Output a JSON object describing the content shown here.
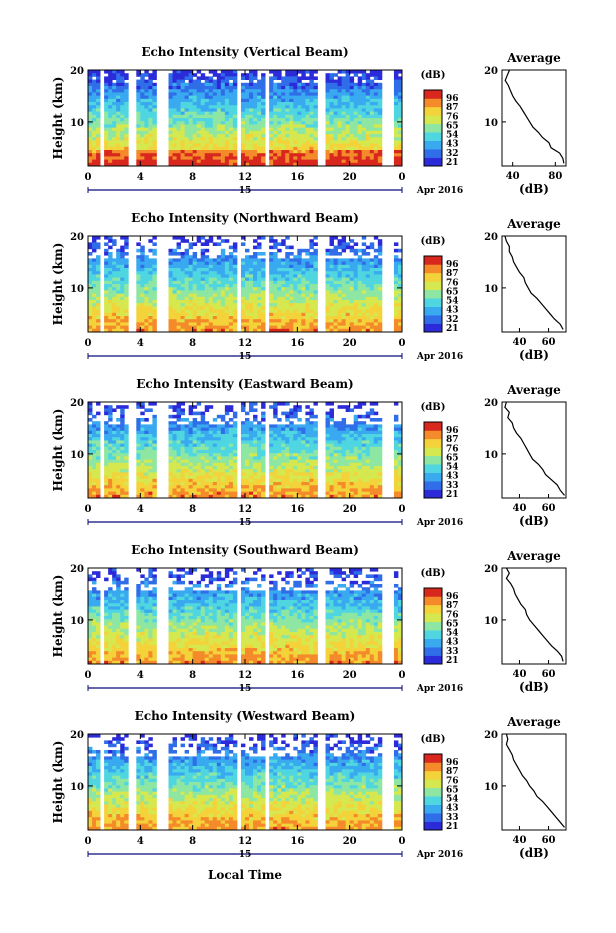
{
  "figure": {
    "x_axis_label": "Local Time",
    "date_unit": "Apr 2016",
    "date_mark": "15",
    "average_panel_title": "Average",
    "y_axis_label": "Height (km)",
    "colorbar_unit_label": "(dB)",
    "average_x_label": "(dB)"
  },
  "colormap": [
    "#2b2bd9",
    "#2f6ee8",
    "#39a9f0",
    "#4fd6e0",
    "#8ee6a3",
    "#d6e84f",
    "#f4d23a",
    "#f48a2a",
    "#d8281e"
  ],
  "chart_data": [
    {
      "type": "heatmap",
      "title": "Echo Intensity (Vertical Beam)",
      "x_ticks": [
        "0",
        "4",
        "8",
        "12",
        "16",
        "20",
        "0"
      ],
      "y_ticks": [
        "20",
        "10"
      ],
      "xlim": [
        0,
        24
      ],
      "ylim": [
        1.5,
        20
      ],
      "colorbar_ticks": [
        "96",
        "87",
        "76",
        "65",
        "54",
        "43",
        "32",
        "21"
      ],
      "gaps_hours": [
        [
          0.8,
          1.1
        ],
        [
          3.0,
          3.6
        ],
        [
          5.3,
          6.2
        ],
        [
          11.5,
          11.8
        ],
        [
          13.5,
          13.8
        ],
        [
          17.5,
          17.7
        ],
        [
          17.9,
          18.2
        ],
        [
          22.4,
          23.4
        ]
      ],
      "average": {
        "x_ticks": [
          "40",
          "80"
        ],
        "xlim": [
          30,
          90
        ],
        "y_ticks": [
          "20",
          "10"
        ],
        "height_km": [
          20,
          19,
          18,
          17,
          16,
          15,
          14,
          13,
          12,
          11,
          10,
          9,
          8,
          7,
          6,
          5,
          4,
          3,
          2
        ],
        "db": [
          37,
          35,
          33,
          36,
          38,
          40,
          43,
          47,
          50,
          53,
          56,
          59,
          64,
          68,
          74,
          76,
          84,
          87,
          88
        ]
      }
    },
    {
      "type": "heatmap",
      "title": "Echo Intensity (Northward Beam)",
      "x_ticks": [
        "0",
        "4",
        "8",
        "12",
        "16",
        "20",
        "0"
      ],
      "y_ticks": [
        "20",
        "10"
      ],
      "xlim": [
        0,
        24
      ],
      "ylim": [
        1.5,
        20
      ],
      "colorbar_ticks": [
        "96",
        "87",
        "76",
        "65",
        "54",
        "43",
        "32",
        "21"
      ],
      "gaps_hours": [
        [
          0.8,
          1.1
        ],
        [
          3.0,
          3.6
        ],
        [
          5.3,
          6.2
        ],
        [
          11.5,
          11.8
        ],
        [
          13.5,
          13.8
        ],
        [
          17.5,
          17.7
        ],
        [
          17.9,
          18.2
        ],
        [
          22.4,
          23.4
        ]
      ],
      "average": {
        "x_ticks": [
          "40",
          "60"
        ],
        "xlim": [
          28,
          72
        ],
        "y_ticks": [
          "20",
          "10"
        ],
        "height_km": [
          20,
          19,
          18,
          17,
          16,
          15,
          14,
          13,
          12,
          11,
          10,
          9,
          8,
          7,
          6,
          5,
          4,
          3,
          2
        ],
        "db": [
          30,
          31,
          33,
          33,
          35,
          36,
          38,
          40,
          43,
          44,
          46,
          48,
          52,
          55,
          58,
          61,
          64,
          68,
          70
        ]
      }
    },
    {
      "type": "heatmap",
      "title": "Echo Intensity (Eastward Beam)",
      "x_ticks": [
        "0",
        "4",
        "8",
        "12",
        "16",
        "20",
        "0"
      ],
      "y_ticks": [
        "20",
        "10"
      ],
      "xlim": [
        0,
        24
      ],
      "ylim": [
        1.5,
        20
      ],
      "colorbar_ticks": [
        "96",
        "87",
        "76",
        "65",
        "54",
        "43",
        "33",
        "21"
      ],
      "gaps_hours": [
        [
          0.8,
          1.1
        ],
        [
          3.0,
          3.6
        ],
        [
          5.3,
          6.2
        ],
        [
          11.5,
          11.8
        ],
        [
          13.5,
          13.8
        ],
        [
          17.5,
          17.7
        ],
        [
          17.9,
          18.2
        ],
        [
          22.4,
          23.4
        ]
      ],
      "average": {
        "x_ticks": [
          "40",
          "60"
        ],
        "xlim": [
          28,
          72
        ],
        "y_ticks": [
          "20",
          "10"
        ],
        "height_km": [
          20,
          19,
          18,
          17,
          16,
          15,
          14,
          13,
          12,
          11,
          10,
          9,
          8,
          7,
          6,
          5,
          4,
          3,
          2
        ],
        "db": [
          31,
          30,
          33,
          32,
          35,
          36,
          38,
          41,
          43,
          45,
          47,
          49,
          53,
          56,
          58,
          62,
          66,
          68,
          71
        ]
      }
    },
    {
      "type": "heatmap",
      "title": "Echo Intensity (Southward Beam)",
      "x_ticks": [
        "0",
        "4",
        "8",
        "12",
        "16",
        "20",
        "0"
      ],
      "y_ticks": [
        "20",
        "10"
      ],
      "xlim": [
        0,
        24
      ],
      "ylim": [
        1.5,
        20
      ],
      "colorbar_ticks": [
        "96",
        "87",
        "76",
        "65",
        "54",
        "43",
        "33",
        "21"
      ],
      "gaps_hours": [
        [
          0.8,
          1.1
        ],
        [
          3.0,
          3.6
        ],
        [
          5.3,
          6.2
        ],
        [
          11.5,
          11.8
        ],
        [
          13.5,
          13.8
        ],
        [
          17.5,
          17.7
        ],
        [
          17.9,
          18.2
        ],
        [
          22.4,
          23.4
        ]
      ],
      "average": {
        "x_ticks": [
          "40",
          "60"
        ],
        "xlim": [
          28,
          72
        ],
        "y_ticks": [
          "20",
          "10"
        ],
        "height_km": [
          20,
          19,
          18,
          17,
          16,
          15,
          14,
          13,
          12,
          11,
          10,
          9,
          8,
          7,
          6,
          5,
          4,
          3,
          2
        ],
        "db": [
          31,
          33,
          31,
          34,
          36,
          37,
          39,
          41,
          44,
          45,
          47,
          50,
          53,
          56,
          59,
          62,
          66,
          69,
          70
        ]
      }
    },
    {
      "type": "heatmap",
      "title": "Echo Intensity (Westward Beam)",
      "x_ticks": [
        "0",
        "4",
        "8",
        "12",
        "16",
        "20",
        "0"
      ],
      "y_ticks": [
        "20",
        "10"
      ],
      "xlim": [
        0,
        24
      ],
      "ylim": [
        1.5,
        20
      ],
      "colorbar_ticks": [
        "96",
        "87",
        "76",
        "65",
        "54",
        "43",
        "33",
        "21"
      ],
      "gaps_hours": [
        [
          0.8,
          1.1
        ],
        [
          3.0,
          3.6
        ],
        [
          5.3,
          6.2
        ],
        [
          11.5,
          11.8
        ],
        [
          13.5,
          13.8
        ],
        [
          17.5,
          17.7
        ],
        [
          17.9,
          18.2
        ],
        [
          22.4,
          23.4
        ]
      ],
      "average": {
        "x_ticks": [
          "40",
          "60"
        ],
        "xlim": [
          28,
          72
        ],
        "y_ticks": [
          "20",
          "10"
        ],
        "height_km": [
          20,
          19,
          18,
          17,
          16,
          15,
          14,
          13,
          12,
          11,
          10,
          9,
          8,
          7,
          6,
          5,
          4,
          3,
          2
        ],
        "db": [
          31,
          32,
          31,
          33,
          35,
          36,
          38,
          40,
          42,
          45,
          47,
          50,
          52,
          56,
          59,
          62,
          65,
          68,
          71
        ]
      }
    }
  ]
}
